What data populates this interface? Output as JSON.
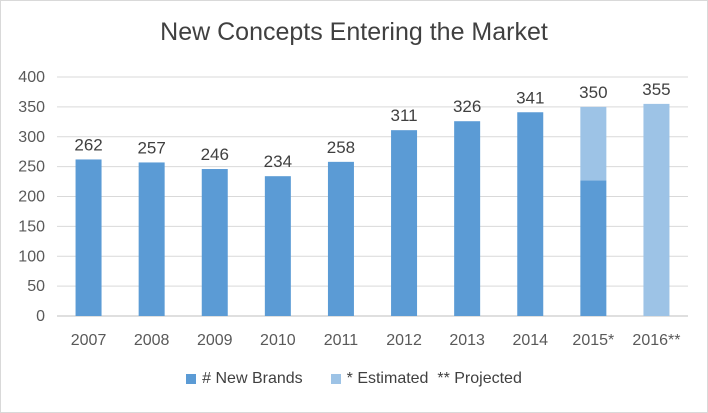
{
  "chart_data": {
    "type": "bar",
    "title": "New Concepts Entering the Market",
    "xlabel": "",
    "ylabel": "",
    "categories": [
      "2007",
      "2008",
      "2009",
      "2010",
      "2011",
      "2012",
      "2013",
      "2014",
      "2015*",
      "2016**"
    ],
    "series": [
      {
        "name": "# New Brands",
        "color": "#5b9bd5",
        "values": [
          262,
          257,
          246,
          234,
          258,
          311,
          326,
          341,
          227,
          0
        ]
      },
      {
        "name": "* Estimated  ** Projected",
        "color": "#9dc3e6",
        "values": [
          0,
          0,
          0,
          0,
          0,
          0,
          0,
          0,
          123,
          355
        ]
      }
    ],
    "data_labels": [
      "262",
      "257",
      "246",
      "234",
      "258",
      "311",
      "326",
      "341",
      "350",
      "355"
    ],
    "stacked": true,
    "ylim": [
      0,
      400
    ],
    "yticks": [
      0,
      50,
      100,
      150,
      200,
      250,
      300,
      350,
      400
    ],
    "grid": true,
    "legend_position": "bottom"
  }
}
